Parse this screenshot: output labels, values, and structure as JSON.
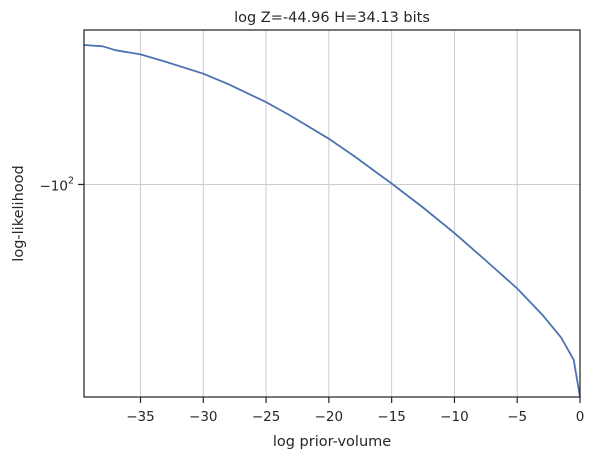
{
  "chart_data": {
    "type": "line",
    "title": "log Z=-44.96 H=34.13 bits",
    "xlabel": "log prior-volume",
    "ylabel": "log-likelihood",
    "xlim": [
      -39.5,
      0
    ],
    "y_scale": "symlog",
    "y_axis_inverted": false,
    "xticks": [
      -35,
      -30,
      -25,
      -20,
      -15,
      -10,
      -5,
      0
    ],
    "xtick_labels": [
      "−35",
      "−30",
      "−25",
      "−20",
      "−15",
      "−10",
      "−5",
      "0"
    ],
    "yticks": [
      -100
    ],
    "ytick_labels": [
      "−10"
    ],
    "ytick_exponent": "2",
    "grid": true,
    "legend": "none",
    "series": [
      {
        "color": "#4c72b0",
        "x": [
          -39.5,
          -38.0,
          -37.0,
          -35.0,
          -33.0,
          -30.0,
          -28.0,
          -25.0,
          -23.0,
          -20.0,
          -18.0,
          -15.0,
          -12.5,
          -10.0,
          -7.5,
          -5.0,
          -3.0,
          -1.5,
          -0.5,
          0.0
        ],
        "y": [
          -56.8,
          -57.1,
          -58.0,
          -59.0,
          -60.8,
          -63.8,
          -66.6,
          -71.6,
          -75.8,
          -83.1,
          -89.1,
          -99.6,
          -109.8,
          -121.8,
          -136.1,
          -152.5,
          -169.6,
          -186.2,
          -203.6,
          -236.8
        ]
      }
    ]
  }
}
